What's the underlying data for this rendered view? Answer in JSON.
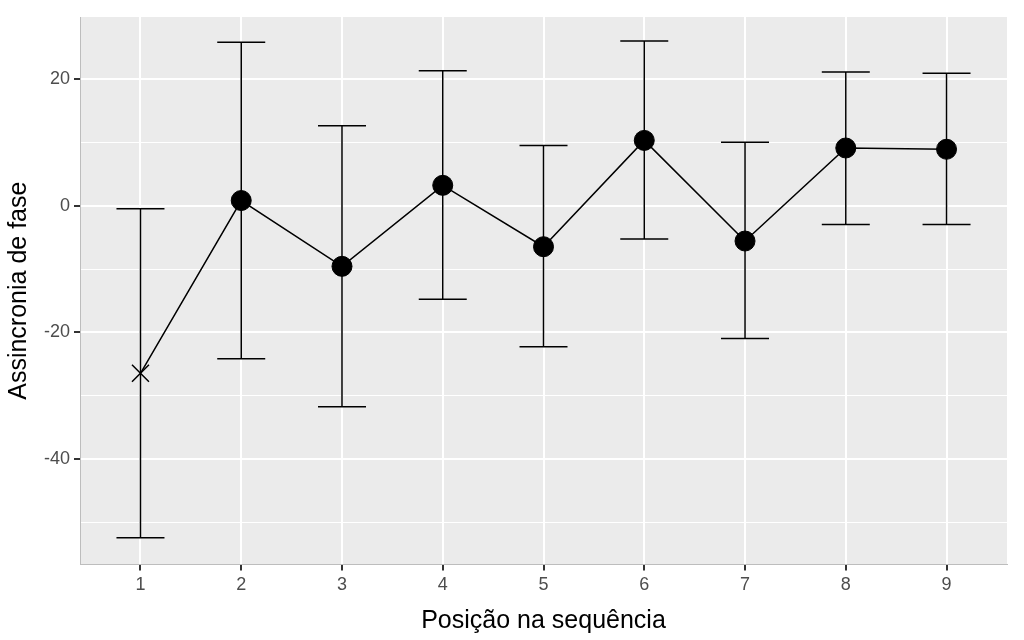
{
  "chart_data": {
    "type": "line",
    "x_label": "Posição na sequência",
    "y_label": "Assincronia de fase",
    "xlim": [
      0.4,
      9.6
    ],
    "xticks": [
      1,
      2,
      3,
      4,
      5,
      6,
      7,
      8,
      9
    ],
    "ylim": [
      -56.7,
      29.8
    ],
    "yticks": [
      -40,
      -20,
      0,
      20
    ],
    "grid": true,
    "line_style": "solid",
    "color": "#000000",
    "series": [
      {
        "x": [
          1
        ],
        "values": [
          -26.5
        ],
        "lower": [
          -52.5
        ],
        "upper": [
          -0.5
        ],
        "marker": "cross",
        "color": "#000000"
      },
      {
        "x": [
          2,
          3,
          4,
          5,
          6,
          7,
          8,
          9
        ],
        "values": [
          0.8,
          -9.6,
          3.2,
          -6.5,
          10.3,
          -5.6,
          9.1,
          8.9
        ],
        "lower": [
          -24.2,
          -31.8,
          -14.8,
          -22.3,
          -5.3,
          -21.0,
          -3.0,
          -3.0
        ],
        "upper": [
          25.8,
          12.6,
          21.3,
          9.5,
          26.0,
          10.0,
          21.1,
          20.9
        ],
        "marker": "circle",
        "color": "#000000"
      }
    ]
  }
}
